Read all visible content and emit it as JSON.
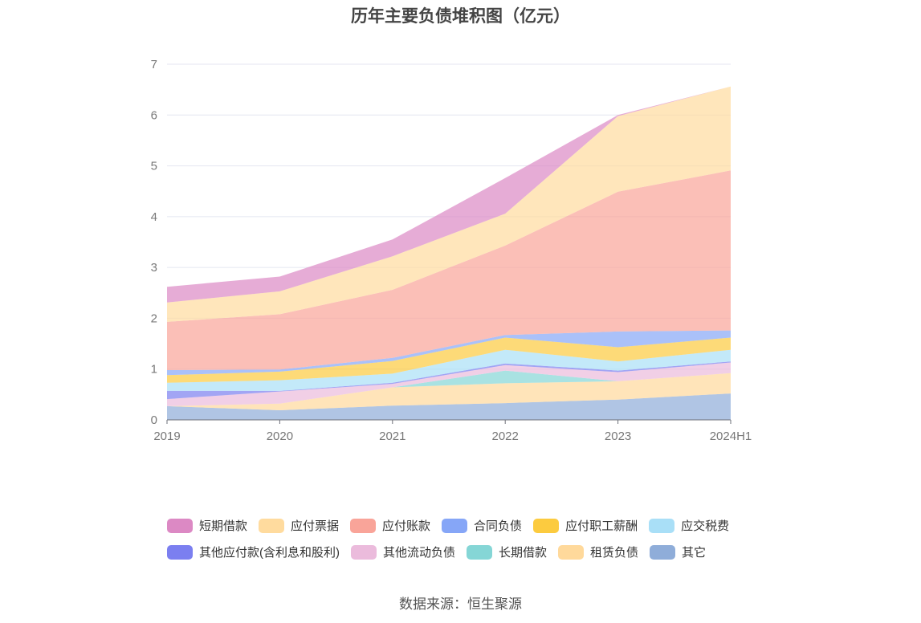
{
  "chart_data": {
    "type": "area",
    "title": "历年主要负债堆积图（亿元）",
    "source": "数据来源：恒生聚源",
    "x": [
      "2019",
      "2020",
      "2021",
      "2022",
      "2023",
      "2024H1"
    ],
    "ylim": [
      0,
      7
    ],
    "yticks": [
      "0",
      "1",
      "2",
      "3",
      "4",
      "5",
      "6",
      "7"
    ],
    "grid": true,
    "legend_position": "bottom",
    "series": [
      {
        "name": "其它",
        "color": "#8fadd9",
        "values": [
          0.27,
          0.19,
          0.28,
          0.33,
          0.4,
          0.52
        ]
      },
      {
        "name": "租赁负债",
        "color": "#ffd99b",
        "values": [
          0.0,
          0.13,
          0.36,
          0.39,
          0.36,
          0.4
        ]
      },
      {
        "name": "长期借款",
        "color": "#85d6d6",
        "values": [
          0.0,
          0.0,
          0.0,
          0.25,
          0.0,
          0.0
        ]
      },
      {
        "name": "其他流动负债",
        "color": "#ebbbdc",
        "values": [
          0.14,
          0.24,
          0.07,
          0.11,
          0.18,
          0.21
        ]
      },
      {
        "name": "其他应付款(含利息和股利)",
        "color": "#7b7ff0",
        "values": [
          0.16,
          0.01,
          0.02,
          0.03,
          0.03,
          0.02
        ]
      },
      {
        "name": "应交税费",
        "color": "#a9dff7",
        "values": [
          0.16,
          0.21,
          0.18,
          0.27,
          0.18,
          0.23
        ]
      },
      {
        "name": "应付职工薪酬",
        "color": "#fccb3f",
        "values": [
          0.15,
          0.17,
          0.25,
          0.24,
          0.28,
          0.24
        ]
      },
      {
        "name": "合同负债",
        "color": "#86a6f7",
        "values": [
          0.1,
          0.04,
          0.06,
          0.05,
          0.31,
          0.14
        ]
      },
      {
        "name": "应付账款",
        "color": "#f9a499",
        "values": [
          0.95,
          1.09,
          1.34,
          1.76,
          2.75,
          3.15
        ]
      },
      {
        "name": "应付票据",
        "color": "#ffdb9e",
        "values": [
          0.38,
          0.45,
          0.66,
          0.63,
          1.49,
          1.65
        ]
      },
      {
        "name": "短期借款",
        "color": "#dc89c4",
        "values": [
          0.31,
          0.29,
          0.33,
          0.7,
          0.02,
          0.0
        ]
      }
    ]
  },
  "legend_rows": [
    [
      "短期借款",
      "应付票据",
      "应付账款",
      "合同负债",
      "应付职工薪酬",
      "应交税费"
    ],
    [
      "其他应付款(含利息和股利)",
      "其他流动负债",
      "长期借款",
      "租赁负债",
      "其它"
    ]
  ]
}
